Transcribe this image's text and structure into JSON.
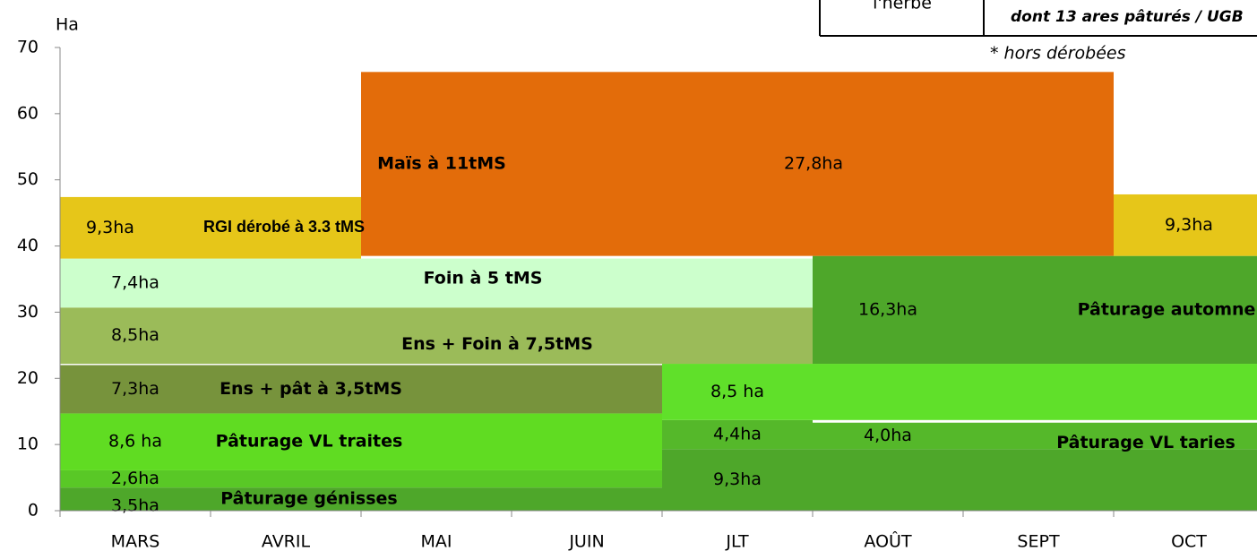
{
  "chart_data": {
    "type": "span-blocks",
    "y_label": "Ha",
    "categories": [
      "MARS",
      "AVRIL",
      "MAI",
      "JUIN",
      "JLT",
      "AOÛT",
      "SEPT",
      "OCT"
    ],
    "ylim": [
      0,
      70
    ],
    "yticks": [
      0,
      10,
      20,
      30,
      40,
      50,
      60,
      70
    ],
    "blocks": [
      {
        "name": "Pâturage génisses",
        "value": 3.5,
        "value_label": "3,5ha",
        "from": "MARS",
        "to": "JUIN",
        "color": "#4ea72a"
      },
      {
        "value": 2.6,
        "value_label": "2,6ha",
        "from": "MARS",
        "to": "JUIN",
        "color": "#59c826"
      },
      {
        "name": "Pâturage VL traites",
        "value": 8.6,
        "value_label": "8,6 ha",
        "from": "MARS",
        "to": "JUIN",
        "color": "#60dc22"
      },
      {
        "name": "Ens + pât à 3,5tMS",
        "value": 7.3,
        "value_label": "7,3ha",
        "from": "MARS",
        "to": "JUIN",
        "color": "#77933c"
      },
      {
        "value": 9.3,
        "value_label": "9,3ha",
        "from": "JLT",
        "to": "OCT",
        "color": "#4ea72a"
      },
      {
        "value": 4.4,
        "value_label": "4,4ha",
        "from": "JLT",
        "to": "JLT",
        "color": "#55b82a"
      },
      {
        "name": "Pâturage VL taries",
        "value": 4.0,
        "value_label": "4,0ha",
        "from": "AOÛT",
        "to": "OCT",
        "color": "#55b82a"
      },
      {
        "value": 8.5,
        "value_label": "8,5 ha",
        "from": "JLT",
        "to": "OCT",
        "color": "#60e02a"
      },
      {
        "name": "Ens + Foin à 7,5tMS",
        "value": 8.5,
        "value_label": "8,5ha",
        "from": "MARS",
        "to": "JLT",
        "color": "#9bbb59"
      },
      {
        "name": "Foin à 5 tMS",
        "value": 7.4,
        "value_label": "7,4ha",
        "from": "MARS",
        "to": "JLT",
        "color": "#ccffcc"
      },
      {
        "name": "Pâturage automne",
        "value": 16.3,
        "value_label": "16,3ha",
        "from": "AOÛT",
        "to": "OCT",
        "color": "#4ea72a"
      },
      {
        "name": "RGI dérobé à 3.3 tMS",
        "value": 9.3,
        "value_label": "9,3ha",
        "from": "MARS",
        "to": "AVRIL",
        "color": "#e6c619"
      },
      {
        "name": "Maïs à 11tMS",
        "value": 27.8,
        "value_label": "27,8ha",
        "from": "MAI",
        "to": "SEPT",
        "color": "#e36c0a"
      },
      {
        "value": 9.3,
        "value_label": "9,3ha",
        "from": "OCT",
        "to": "OCT",
        "color": "#e6c619"
      }
    ],
    "annotations": [
      "l'herbe",
      "dont 13  ares pâturés / UGB",
      "* hors dérobées"
    ]
  }
}
